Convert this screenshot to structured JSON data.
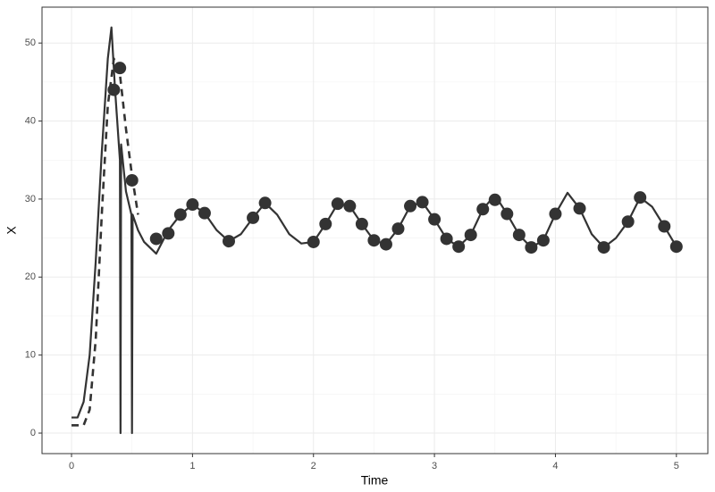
{
  "chart_data": {
    "type": "line",
    "x_label": "Time",
    "y_label": "X",
    "xlim": [
      -0.244,
      5.26
    ],
    "ylim": [
      -2.63,
      54.6
    ],
    "xticks": [
      0,
      1,
      2,
      3,
      4,
      5
    ],
    "yticks": [
      0,
      10,
      20,
      30,
      40,
      50
    ],
    "grid": true,
    "series": [
      {
        "style": "solid",
        "color": "#333333",
        "x": [
          0,
          0.05,
          0.1,
          0.15,
          0.2,
          0.25,
          0.3,
          0.33,
          0.36,
          0.4,
          0.405,
          0.41,
          0.45,
          0.495,
          0.5,
          0.505,
          0.55,
          0.6,
          0.7,
          0.8,
          0.9,
          1.0,
          1.1,
          1.2,
          1.3,
          1.4,
          1.5,
          1.6,
          1.7,
          1.8,
          1.9,
          2.0,
          2.1,
          2.2,
          2.3,
          2.4,
          2.5,
          2.6,
          2.7,
          2.8,
          2.9,
          3.0,
          3.1,
          3.2,
          3.3,
          3.4,
          3.5,
          3.6,
          3.7,
          3.8,
          3.9,
          4.0,
          4.1,
          4.2,
          4.3,
          4.4,
          4.5,
          4.6,
          4.7,
          4.8,
          4.9,
          5.0
        ],
        "values": [
          2,
          2,
          4,
          10,
          22,
          36,
          48,
          52,
          44,
          35,
          0,
          37,
          31,
          28,
          0,
          28,
          26,
          24.5,
          23,
          26,
          28,
          29.3,
          28.2,
          26,
          24.6,
          25.5,
          27.6,
          29.5,
          28,
          25.5,
          24.3,
          24.5,
          26.8,
          29.4,
          29.1,
          26.8,
          24.7,
          24.2,
          26.2,
          29.1,
          29.6,
          27.4,
          24.9,
          23.9,
          25.4,
          28.7,
          30.5,
          28.1,
          25.4,
          23.8,
          24.7,
          28.1,
          30.8,
          28.8,
          25.5,
          23.8,
          25,
          27.1,
          30.2,
          29,
          26.5,
          23.9
        ]
      },
      {
        "style": "dashed",
        "color": "#333333",
        "x": [
          0,
          0.05,
          0.1,
          0.15,
          0.2,
          0.25,
          0.3,
          0.35,
          0.4,
          0.45,
          0.5,
          0.55
        ],
        "values": [
          1,
          1,
          1,
          3,
          12,
          28,
          42,
          48,
          46,
          39,
          33,
          28
        ]
      },
      {
        "style": "points",
        "color": "#333333",
        "x": [
          0.35,
          0.4,
          0.5,
          0.7,
          0.8,
          0.9,
          1.0,
          1.1,
          1.3,
          1.5,
          1.6,
          2.0,
          2.1,
          2.2,
          2.3,
          2.4,
          2.5,
          2.6,
          2.7,
          2.8,
          2.9,
          3.0,
          3.1,
          3.2,
          3.3,
          3.4,
          3.5,
          3.6,
          3.7,
          3.8,
          3.9,
          4.0,
          4.2,
          4.4,
          4.6,
          4.7,
          4.9,
          5.0
        ],
        "values": [
          44,
          46.8,
          32.4,
          24.9,
          25.6,
          28,
          29.3,
          28.2,
          24.6,
          27.6,
          29.5,
          24.5,
          26.8,
          29.4,
          29.1,
          26.8,
          24.7,
          24.2,
          26.2,
          29.1,
          29.6,
          27.4,
          24.9,
          23.9,
          25.4,
          28.7,
          29.9,
          28.1,
          25.4,
          23.8,
          24.7,
          28.1,
          28.8,
          23.8,
          27.1,
          30.2,
          26.5,
          23.9
        ]
      }
    ]
  }
}
